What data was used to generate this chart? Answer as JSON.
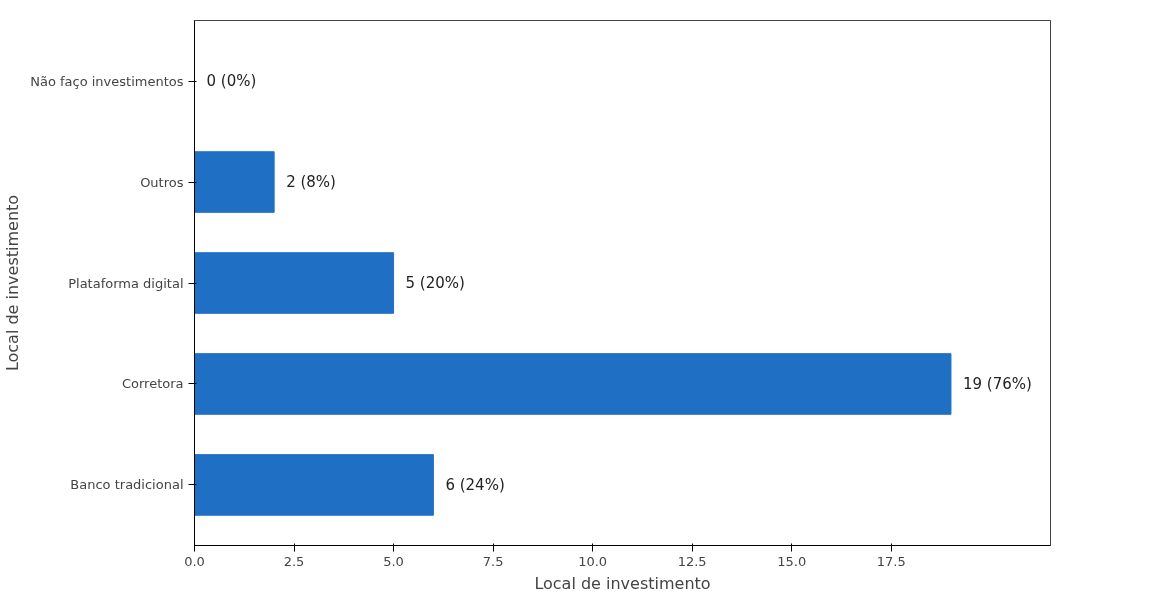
{
  "chart_data": {
    "type": "bar",
    "orientation": "horizontal",
    "xlabel": "Local de investimento",
    "ylabel": "Local de investimento",
    "categories": [
      "Não faço investimentos",
      "Outros",
      "Plataforma digital",
      "Corretora",
      "Banco tradicional"
    ],
    "values": [
      0,
      2,
      5,
      19,
      6
    ],
    "value_labels": [
      "0 (0%)",
      "2 (8%)",
      "5 (20%)",
      "19 (76%)",
      "6 (24%)"
    ],
    "color": "#1f6fc4",
    "xlim": [
      0,
      21.5
    ],
    "xticks": [
      {
        "value": 0,
        "label": "0.0"
      },
      {
        "value": 2.5,
        "label": "2.5"
      },
      {
        "value": 5,
        "label": "5.0"
      },
      {
        "value": 7.5,
        "label": "7.5"
      },
      {
        "value": 10,
        "label": "10.0"
      },
      {
        "value": 12.5,
        "label": "12.5"
      },
      {
        "value": 15,
        "label": "15.0"
      },
      {
        "value": 17.5,
        "label": "17.5"
      }
    ],
    "grid": false
  }
}
